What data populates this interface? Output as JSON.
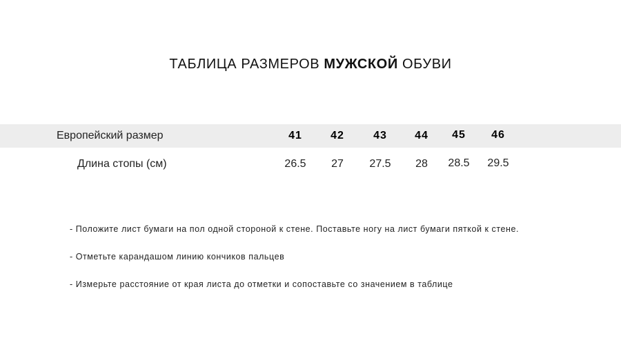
{
  "title": {
    "prefix": "ТАБЛИЦА РАЗМЕРОВ ",
    "bold": "МУЖСКОЙ",
    "suffix": " ОБУВИ"
  },
  "table": {
    "rows": [
      {
        "label": "Европейский размер",
        "values": [
          "41",
          "42",
          "43",
          "44",
          "45",
          "46"
        ]
      },
      {
        "label": "Длина стопы (см)",
        "values": [
          "26.5",
          "27",
          "27.5",
          "28",
          "28.5",
          "29.5"
        ]
      }
    ],
    "header_band_color": "#ededed"
  },
  "instructions": [
    "- Положите лист бумаги на пол одной стороной к стене. Поставьте ногу на лист бумаги пяткой к стене.",
    "- Отметьте карандашом линию кончиков пальцев",
    "- Измерьте расстояние от края листа до отметки и сопоставьте со значением в таблице"
  ]
}
